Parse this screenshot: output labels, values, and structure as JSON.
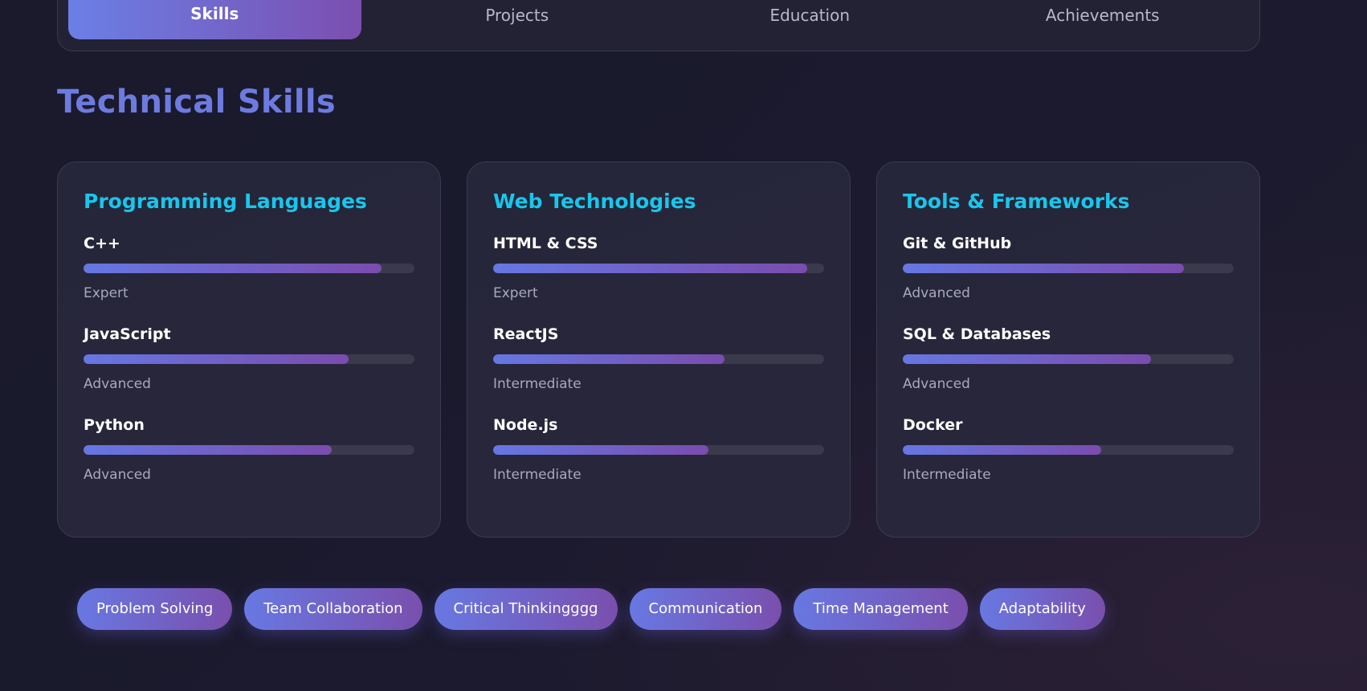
{
  "tabs": [
    {
      "label": "Skills",
      "active": true
    },
    {
      "label": "Projects",
      "active": false
    },
    {
      "label": "Education",
      "active": false
    },
    {
      "label": "Achievements",
      "active": false
    }
  ],
  "section_title": "Technical Skills",
  "cards": [
    {
      "title": "Programming Languages",
      "skills": [
        {
          "name": "C++",
          "level": "Expert",
          "progress": 0.9
        },
        {
          "name": "JavaScript",
          "level": "Advanced",
          "progress": 0.8
        },
        {
          "name": "Python",
          "level": "Advanced",
          "progress": 0.75
        }
      ]
    },
    {
      "title": "Web Technologies",
      "skills": [
        {
          "name": "HTML & CSS",
          "level": "Expert",
          "progress": 0.95
        },
        {
          "name": "ReactJS",
          "level": "Intermediate",
          "progress": 0.7
        },
        {
          "name": "Node.js",
          "level": "Intermediate",
          "progress": 0.65
        }
      ]
    },
    {
      "title": "Tools & Frameworks",
      "skills": [
        {
          "name": "Git & GitHub",
          "level": "Advanced",
          "progress": 0.85
        },
        {
          "name": "SQL & Databases",
          "level": "Advanced",
          "progress": 0.75
        },
        {
          "name": "Docker",
          "level": "Intermediate",
          "progress": 0.6
        }
      ]
    }
  ],
  "soft_skills": [
    "Problem Solving",
    "Team Collaboration",
    "Critical Thinkingggg",
    "Communication",
    "Time Management",
    "Adaptability"
  ],
  "colors": {
    "accent_start": "#6b7fe6",
    "accent_end": "#7b4fb0",
    "card_title": "#19c6ec",
    "section_title": "#6d7be0"
  }
}
